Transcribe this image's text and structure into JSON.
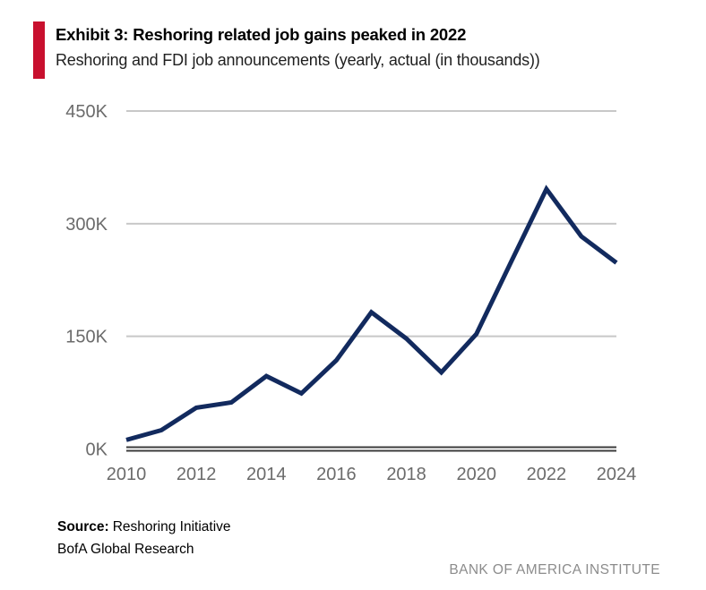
{
  "header": {
    "exhibit_title": "Exhibit 3: Reshoring related job gains peaked in 2022",
    "subtitle": "Reshoring and FDI job announcements (yearly, actual (in thousands))"
  },
  "source": {
    "label": "Source:",
    "value": "Reshoring Initiative",
    "line2": "BofA Global Research"
  },
  "footer": {
    "brand": "BANK OF AMERICA INSTITUTE"
  },
  "colors": {
    "accent_red": "#C8102E",
    "line_navy": "#122A5E",
    "gridline_gray": "#C8C8C8",
    "axis_dark": "#3C3C3C",
    "tick_label_gray": "#6B6B6B"
  },
  "chart_data": {
    "type": "line",
    "title": "Exhibit 3: Reshoring related job gains peaked in 2022",
    "subtitle": "Reshoring and FDI job announcements (yearly, actual (in thousands))",
    "xlabel": "",
    "ylabel": "",
    "units": "thousands of jobs",
    "x": [
      2010,
      2011,
      2012,
      2013,
      2014,
      2015,
      2016,
      2017,
      2018,
      2019,
      2020,
      2021,
      2022,
      2023,
      2024
    ],
    "series": [
      {
        "name": "Reshoring and FDI job announcements",
        "values": [
          12,
          25,
          55,
          62,
          97,
          74,
          118,
          182,
          147,
          102,
          153,
          250,
          346,
          283,
          248
        ]
      }
    ],
    "xlim": [
      2010,
      2024
    ],
    "ylim": [
      0,
      450
    ],
    "y_ticks": [
      0,
      150,
      300,
      450
    ],
    "y_tick_labels": [
      "0K",
      "150K",
      "300K",
      "450K"
    ],
    "x_ticks": [
      2010,
      2012,
      2014,
      2016,
      2018,
      2020,
      2022,
      2024
    ],
    "x_tick_labels": [
      "2010",
      "2012",
      "2014",
      "2016",
      "2018",
      "2020",
      "2022",
      "2024"
    ],
    "grid": "horizontal",
    "legend": "none"
  }
}
